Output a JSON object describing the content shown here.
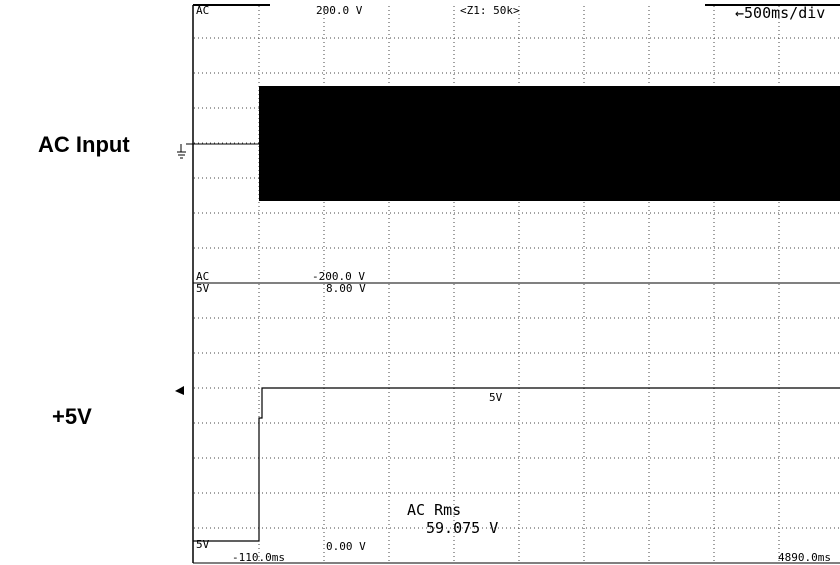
{
  "labels": {
    "ac_input": "AC Input",
    "plus5v": "+5V"
  },
  "top_panel": {
    "coupling_top": "AC",
    "scale_top": "200.0 V",
    "zoom": "<Z1: 50k>",
    "timebase": "←500ms/div",
    "coupling_bottom": "AC",
    "scale_bottom": "-200.0 V"
  },
  "bottom_panel": {
    "range_top": "5V",
    "scale_top": "8.00 V",
    "trace_label": "5V",
    "range_bottom": "5V",
    "scale_bottom": "0.00 V",
    "measure_title": "AC  Rms",
    "measure_value": "59.075 V"
  },
  "time_axis": {
    "start": "-110.0ms",
    "end": "4890.0ms"
  }
}
